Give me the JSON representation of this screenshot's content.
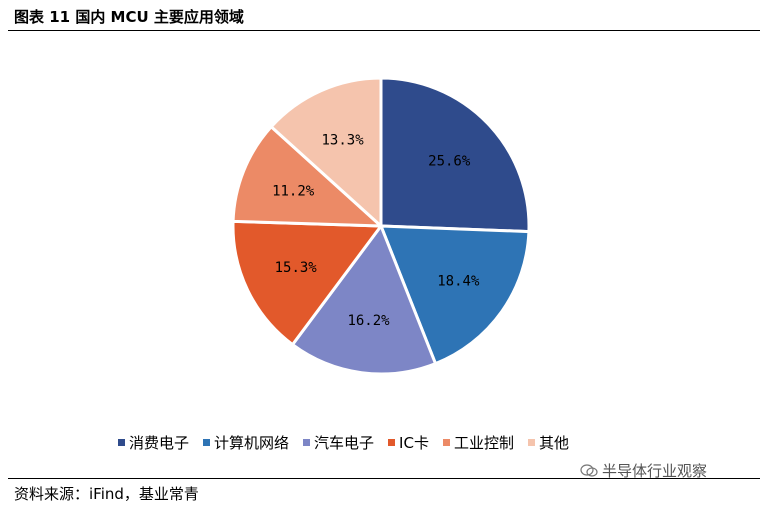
{
  "figure_title": "图表 11 国内 MCU 主要应用领域",
  "source_text": "资料来源：iFind，基业常青",
  "watermark_text": "半导体行业观察",
  "chart_data": {
    "type": "pie",
    "title": "",
    "categories": [
      "消费电子",
      "计算机网络",
      "汽车电子",
      "IC卡",
      "工业控制",
      "其他"
    ],
    "values": [
      25.6,
      18.4,
      16.2,
      15.3,
      11.2,
      13.3
    ],
    "value_labels": [
      "25.6%",
      "18.4%",
      "16.2%",
      "15.3%",
      "11.2%",
      "13.3%"
    ],
    "colors": [
      "#2f4b8c",
      "#2e74b5",
      "#7d86c6",
      "#e2592b",
      "#ec8a66",
      "#f5c4ad"
    ],
    "explode_offsets_px": [
      0,
      0,
      0,
      0,
      0,
      0
    ],
    "legend_position": "bottom",
    "start_angle": "12 o'clock, clockwise"
  }
}
